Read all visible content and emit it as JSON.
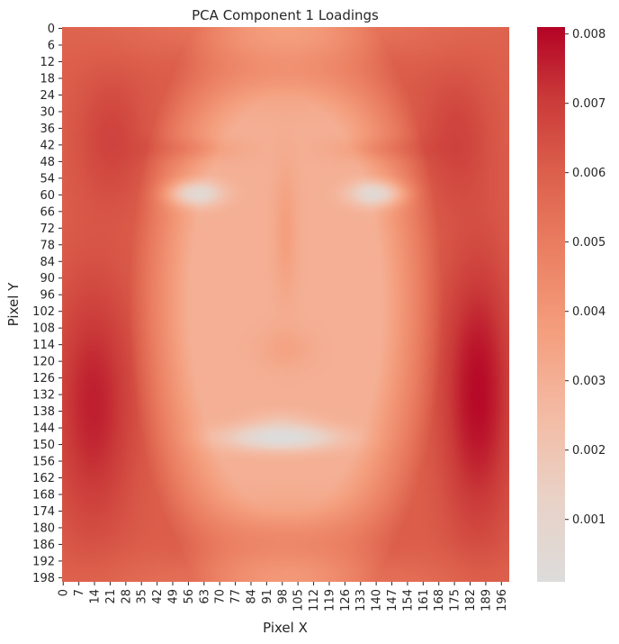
{
  "chart_data": {
    "type": "heatmap",
    "title": "PCA Component 1 Loadings",
    "xlabel": "Pixel X",
    "ylabel": "Pixel Y",
    "grid_size": [
      200,
      200
    ],
    "x_tick_labels": [
      "0",
      "7",
      "14",
      "21",
      "28",
      "35",
      "42",
      "49",
      "56",
      "63",
      "70",
      "77",
      "84",
      "91",
      "98",
      "105",
      "112",
      "119",
      "126",
      "133",
      "140",
      "147",
      "154",
      "161",
      "168",
      "175",
      "182",
      "189",
      "196"
    ],
    "y_tick_labels": [
      "0",
      "6",
      "12",
      "18",
      "24",
      "30",
      "36",
      "42",
      "48",
      "54",
      "60",
      "66",
      "72",
      "78",
      "84",
      "90",
      "96",
      "102",
      "108",
      "114",
      "120",
      "126",
      "132",
      "138",
      "144",
      "150",
      "156",
      "162",
      "168",
      "174",
      "180",
      "186",
      "192",
      "198"
    ],
    "value_range": [
      0.0001,
      0.0081
    ],
    "colormap": "coolwarm (upper half)",
    "colorbar": {
      "position": "right",
      "tick_labels": [
        "0.001",
        "0.002",
        "0.003",
        "0.004",
        "0.005",
        "0.006",
        "0.007",
        "0.008"
      ],
      "tick_values": [
        0.001,
        0.002,
        0.003,
        0.004,
        0.005,
        0.006,
        0.007,
        0.008
      ]
    },
    "approx_features": {
      "outer_border": 0.0068,
      "cheek_edges_max": 0.008,
      "face_center": 0.003,
      "eyes_min": 0.0004,
      "mouth_min": 0.0003
    },
    "colors": {
      "low": "#dddcdb",
      "mid": "#f2b9a0",
      "high": "#b40426"
    }
  }
}
